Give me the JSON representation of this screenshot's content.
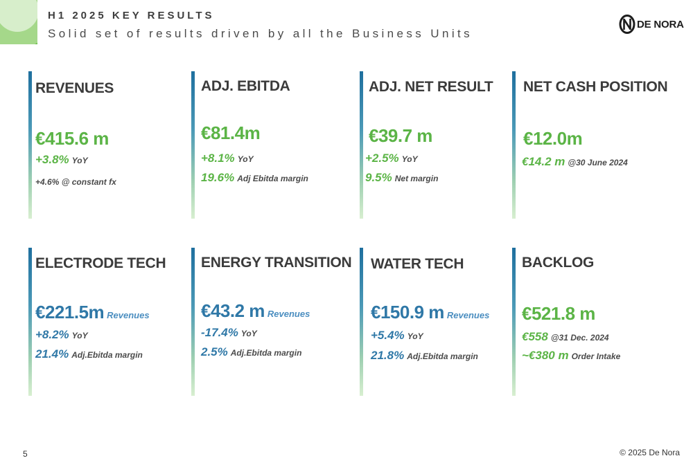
{
  "header": {
    "title": "H1 2025 KEY RESULTS",
    "subtitle": "Solid set of results driven by all the Business Units"
  },
  "logo": {
    "text": "DE NORA",
    "icon": "de-nora-logo-icon"
  },
  "colors": {
    "green": "#5bb446",
    "blue": "#2f78a7",
    "heading": "#3b3b3b"
  },
  "cards": {
    "revenues": {
      "head": "REVENUES",
      "value": "€415.6 m",
      "l1v": "+3.8%",
      "l1d": "YoY",
      "note": "+4.6% @ constant fx"
    },
    "ebitda": {
      "head": "ADJ. EBITDA",
      "value": "€81.4m",
      "l1v": "+8.1%",
      "l1d": "YoY",
      "l2v": "19.6%",
      "l2d": "Adj Ebitda margin"
    },
    "net_result": {
      "head": "ADJ. NET RESULT",
      "value": "€39.7 m",
      "l1v": "+2.5%",
      "l1d": "YoY",
      "l2v": "9.5%",
      "l2d": "Net margin"
    },
    "net_cash": {
      "head": "NET CASH POSITION",
      "value": "€12.0m",
      "l1v": "€14.2 m",
      "l1d": "@30 June 2024"
    },
    "electrode": {
      "head": "ELECTRODE TECH",
      "value": "€221.5m",
      "unit": "Revenues",
      "l1v": "+8.2%",
      "l1d": "YoY",
      "l2v": "21.4%",
      "l2d": "Adj.Ebitda margin"
    },
    "energy": {
      "head": "ENERGY TRANSITION",
      "value": "€43.2 m",
      "unit": "Revenues",
      "l1v": "-17.4%",
      "l1d": "YoY",
      "l2v": "2.5%",
      "l2d": "Adj.Ebitda margin"
    },
    "water": {
      "head": "WATER TECH",
      "value": "€150.9 m",
      "unit": "Revenues",
      "l1v": "+5.4%",
      "l1d": "YoY",
      "l2v": "21.8%",
      "l2d": "Adj.Ebitda margin"
    },
    "backlog": {
      "head": "BACKLOG",
      "value": "€521.8 m",
      "l1v": "€558",
      "l1d": "@31 Dec. 2024",
      "l2v": "~€380 m",
      "l2d": "Order Intake"
    }
  },
  "footer": {
    "page": "5",
    "copyright": "© 2025 De Nora"
  }
}
